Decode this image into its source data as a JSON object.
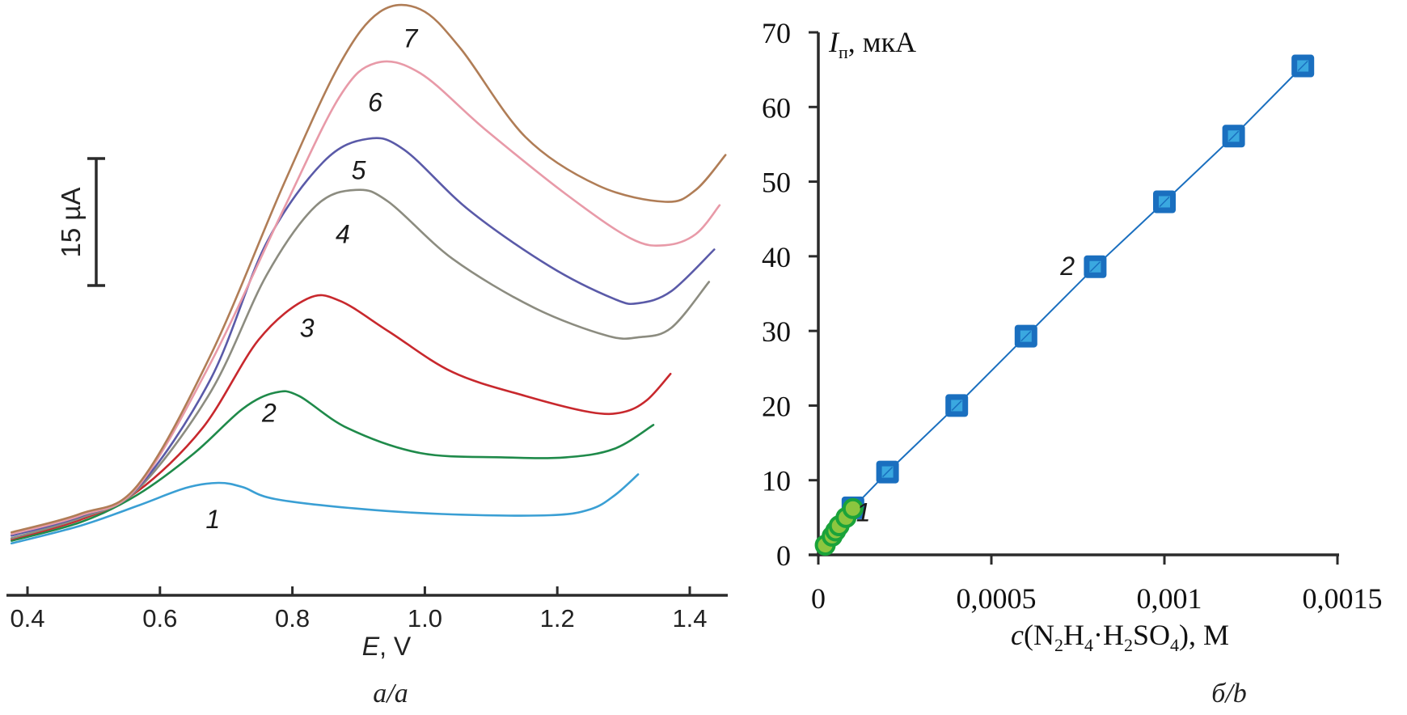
{
  "chart_data": [
    {
      "panel": "a",
      "type": "line",
      "title": "",
      "xlabel_italic": "E",
      "xlabel_rest": ", V",
      "ylabel": "",
      "xlim": [
        0.375,
        1.455
      ],
      "x_ticks": [
        0.4,
        0.6,
        0.8,
        1.0,
        1.2,
        1.4
      ],
      "x_tick_labels": [
        "0.4",
        "0.6",
        "0.8",
        "1.0",
        "1.2",
        "1.4"
      ],
      "scale_bar": {
        "value_uA": 15,
        "label": "15 µA"
      },
      "y_unit": "µA (relative, baseline arbitrary)",
      "grid": false,
      "caption": "a/a",
      "series": [
        {
          "name": "1",
          "color": "#3a9fd4",
          "label_at": [
            0.68,
            9.0
          ],
          "points": [
            [
              0.376,
              6.1
            ],
            [
              0.481,
              8.2
            ],
            [
              0.566,
              10.5
            ],
            [
              0.639,
              12.6
            ],
            [
              0.688,
              13.2
            ],
            [
              0.725,
              12.7
            ],
            [
              0.774,
              11.3
            ],
            [
              0.908,
              10.1
            ],
            [
              1.042,
              9.5
            ],
            [
              1.189,
              9.4
            ],
            [
              1.25,
              10.1
            ],
            [
              1.286,
              11.7
            ],
            [
              1.322,
              14.2
            ]
          ]
        },
        {
          "name": "2",
          "color": "#1f8a4a",
          "label_at": [
            0.765,
            21.5
          ],
          "points": [
            [
              0.376,
              6.4
            ],
            [
              0.481,
              8.6
            ],
            [
              0.566,
              11.8
            ],
            [
              0.652,
              16.7
            ],
            [
              0.725,
              21.9
            ],
            [
              0.774,
              23.8
            ],
            [
              0.81,
              23.4
            ],
            [
              0.884,
              19.6
            ],
            [
              0.993,
              16.7
            ],
            [
              1.116,
              16.2
            ],
            [
              1.213,
              16.2
            ],
            [
              1.286,
              17.2
            ],
            [
              1.345,
              20.0
            ]
          ]
        },
        {
          "name": "3",
          "color": "#c8282d",
          "label_at": [
            0.822,
            31.5
          ],
          "points": [
            [
              0.376,
              6.6
            ],
            [
              0.481,
              8.9
            ],
            [
              0.566,
              12.2
            ],
            [
              0.664,
              19.6
            ],
            [
              0.749,
              30.0
            ],
            [
              0.822,
              34.8
            ],
            [
              0.871,
              34.6
            ],
            [
              0.945,
              31.0
            ],
            [
              1.042,
              26.2
            ],
            [
              1.152,
              23.4
            ],
            [
              1.25,
              21.5
            ],
            [
              1.299,
              21.5
            ],
            [
              1.335,
              22.9
            ],
            [
              1.371,
              26.0
            ]
          ]
        },
        {
          "name": "4",
          "color": "#8c8c80",
          "label_at": [
            0.876,
            42.5
          ],
          "points": [
            [
              0.376,
              6.7
            ],
            [
              0.481,
              9.1
            ],
            [
              0.566,
              12.4
            ],
            [
              0.676,
              23.8
            ],
            [
              0.761,
              37.6
            ],
            [
              0.835,
              45.7
            ],
            [
              0.896,
              47.6
            ],
            [
              0.945,
              46.2
            ],
            [
              1.042,
              39.5
            ],
            [
              1.164,
              33.8
            ],
            [
              1.274,
              30.5
            ],
            [
              1.323,
              30.3
            ],
            [
              1.372,
              31.4
            ],
            [
              1.429,
              36.8
            ]
          ]
        },
        {
          "name": "5",
          "color": "#5a5aa8",
          "label_at": [
            0.9,
            50.0
          ],
          "points": [
            [
              0.376,
              7.0
            ],
            [
              0.481,
              9.3
            ],
            [
              0.566,
              12.6
            ],
            [
              0.676,
              25.3
            ],
            [
              0.761,
              41.4
            ],
            [
              0.847,
              50.9
            ],
            [
              0.914,
              53.6
            ],
            [
              0.969,
              52.3
            ],
            [
              1.067,
              45.2
            ],
            [
              1.189,
              38.6
            ],
            [
              1.286,
              34.8
            ],
            [
              1.323,
              34.3
            ],
            [
              1.372,
              35.7
            ],
            [
              1.437,
              40.6
            ]
          ]
        },
        {
          "name": "6",
          "color": "#e89aa8",
          "label_at": [
            0.925,
            58.0
          ],
          "points": [
            [
              0.376,
              7.2
            ],
            [
              0.481,
              9.4
            ],
            [
              0.566,
              12.7
            ],
            [
              0.676,
              27.2
            ],
            [
              0.786,
              45.2
            ],
            [
              0.871,
              58.5
            ],
            [
              0.926,
              62.5
            ],
            [
              0.993,
              61.3
            ],
            [
              1.091,
              54.7
            ],
            [
              1.213,
              47.1
            ],
            [
              1.311,
              41.9
            ],
            [
              1.363,
              41.1
            ],
            [
              1.409,
              42.4
            ],
            [
              1.445,
              45.8
            ]
          ]
        },
        {
          "name": "7",
          "color": "#b07d56",
          "label_at": [
            0.978,
            65.5
          ],
          "points": [
            [
              0.376,
              7.4
            ],
            [
              0.481,
              9.6
            ],
            [
              0.566,
              12.9
            ],
            [
              0.676,
              28.1
            ],
            [
              0.786,
              48.1
            ],
            [
              0.871,
              62.3
            ],
            [
              0.932,
              68.5
            ],
            [
              0.993,
              68.8
            ],
            [
              1.054,
              64.2
            ],
            [
              1.152,
              53.8
            ],
            [
              1.262,
              48.1
            ],
            [
              1.363,
              46.2
            ],
            [
              1.409,
              47.6
            ],
            [
              1.454,
              51.7
            ]
          ]
        }
      ]
    },
    {
      "panel": "b",
      "type": "scatter",
      "title": "",
      "xlabel": "c(N2H4·H2SO4), M",
      "ylabel": "Iп, мкА",
      "xlim": [
        0,
        0.0015
      ],
      "ylim": [
        0,
        70
      ],
      "x_ticks": [
        0,
        0.0005,
        0.001,
        0.0015
      ],
      "x_tick_labels": [
        "0",
        "0,0005",
        "0,001",
        "0,0015"
      ],
      "y_ticks": [
        0,
        10,
        20,
        30,
        40,
        50,
        60,
        70
      ],
      "y_tick_labels": [
        "0",
        "10",
        "20",
        "30",
        "40",
        "50",
        "60",
        "70"
      ],
      "grid": false,
      "caption": "б/b",
      "series": [
        {
          "name": "1",
          "marker": "circle",
          "color": "#1aa33a",
          "fill": "#8cc63f",
          "line": false,
          "label_at": [
            0.00013,
            4.5
          ],
          "x": [
            2e-05,
            4e-05,
            5e-05,
            6e-05,
            8e-05,
            0.0001
          ],
          "y": [
            1.3,
            2.5,
            3.2,
            3.9,
            5.0,
            6.2
          ]
        },
        {
          "name": "2",
          "marker": "square",
          "color": "#1a6fbf",
          "fill": "#3aa8e0",
          "line": true,
          "label_at": [
            0.00072,
            37.5
          ],
          "x": [
            0.0001,
            0.0002,
            0.0004,
            0.0006,
            0.0008,
            0.001,
            0.0012,
            0.0014
          ],
          "y": [
            6.3,
            11.1,
            20.0,
            29.3,
            38.6,
            47.3,
            56.1,
            65.5
          ]
        }
      ]
    }
  ],
  "labels": {
    "a_xlabel_italic": "E",
    "a_xlabel_rest": ", V",
    "a_caption": "a/a",
    "scale_bar_label": "15 µA",
    "b_ylabel_I": "I",
    "b_ylabel_sub": "п",
    "b_ylabel_rest": ", мкА",
    "b_xlabel_c": "c",
    "b_xlabel_open": "(N",
    "b_xlabel_sub2a": "2",
    "b_xlabel_H": "H",
    "b_xlabel_sub4a": "4",
    "b_xlabel_mid": "·H",
    "b_xlabel_sub2b": "2",
    "b_xlabel_SO": "SO",
    "b_xlabel_sub4b": "4",
    "b_xlabel_close": "), М",
    "b_caption": "б/b"
  }
}
